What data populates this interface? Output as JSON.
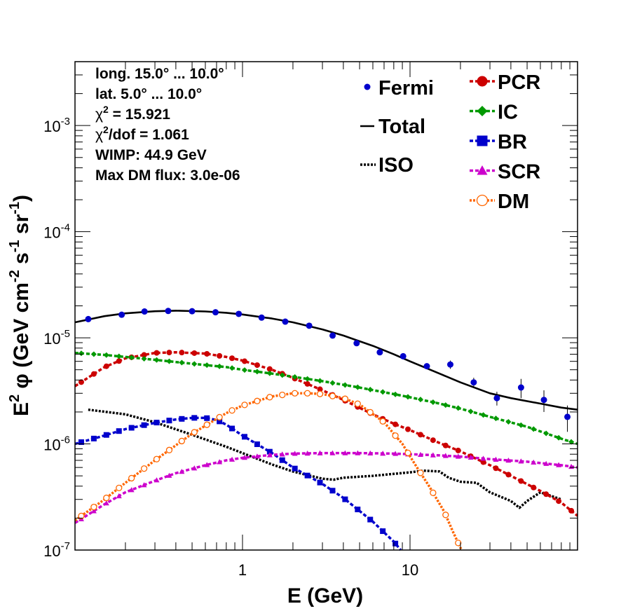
{
  "annotations": [
    {
      "text": "long. 15.0° ... 10.0°"
    },
    {
      "prefix": "χ",
      "sup": "",
      "text": "lat. 5.0° ... 10.0°"
    },
    {
      "prefix": "χ",
      "sup": "2",
      "text": " = 15.921"
    },
    {
      "prefix": "χ",
      "sup": "2",
      "text": "/dof = 1.061"
    },
    {
      "text": "WIMP: 44.9 GeV"
    },
    {
      "text": "Max DM flux: 3.0e-06"
    }
  ],
  "chart_data": {
    "type": "line",
    "xlabel": "E (GeV)",
    "ylabel": {
      "a": "E",
      "a_sup": "2",
      "b": " φ (GeV cm",
      "b_sup": "-2",
      "c": " s",
      "c_sup": "-1",
      "d": " sr",
      "d_sup": "-1",
      "e": ")"
    },
    "x_scale": "log",
    "y_scale": "log",
    "xlim": [
      0.1,
      100
    ],
    "ylim": [
      1e-07,
      0.004
    ],
    "x_ticks": [
      {
        "value": 1,
        "label": "1"
      },
      {
        "value": 10,
        "label": "10"
      }
    ],
    "y_ticks": [
      {
        "value": 1e-07,
        "base": "10",
        "exp": "-7"
      },
      {
        "value": 1e-06,
        "base": "10",
        "exp": "-6"
      },
      {
        "value": 1e-05,
        "base": "10",
        "exp": "-5"
      },
      {
        "value": 0.0001,
        "base": "10",
        "exp": "-4"
      },
      {
        "value": 0.001,
        "base": "10",
        "exp": "-3"
      }
    ],
    "legend_position": "top-right",
    "fermi": {
      "name": "Fermi",
      "color": "#0000cc",
      "points": [
        {
          "x": 0.12,
          "y": 1.5e-05,
          "err": 0
        },
        {
          "x": 0.19,
          "y": 1.65e-05,
          "err": 0
        },
        {
          "x": 0.26,
          "y": 1.77e-05,
          "err": 0
        },
        {
          "x": 0.36,
          "y": 1.79e-05,
          "err": 0
        },
        {
          "x": 0.5,
          "y": 1.78e-05,
          "err": 0
        },
        {
          "x": 0.69,
          "y": 1.74e-05,
          "err": 0
        },
        {
          "x": 0.95,
          "y": 1.68e-05,
          "err": 0
        },
        {
          "x": 1.3,
          "y": 1.55e-05,
          "err": 0
        },
        {
          "x": 1.8,
          "y": 1.42e-05,
          "err": 0
        },
        {
          "x": 2.5,
          "y": 1.3e-05,
          "err": 0
        },
        {
          "x": 3.45,
          "y": 1.05e-05,
          "err": 0
        },
        {
          "x": 4.8,
          "y": 8.9e-06,
          "err": 0
        },
        {
          "x": 6.6,
          "y": 7.3e-06,
          "err": 0
        },
        {
          "x": 9.1,
          "y": 6.7e-06,
          "err": 0
        },
        {
          "x": 12.6,
          "y": 5.4e-06,
          "err": 3.5e-07
        },
        {
          "x": 17.4,
          "y": 5.6e-06,
          "err": 5e-07
        },
        {
          "x": 24,
          "y": 3.8e-06,
          "err": 4e-07
        },
        {
          "x": 33,
          "y": 2.7e-06,
          "err": 4e-07
        },
        {
          "x": 46,
          "y": 3.4e-06,
          "err": 7e-07
        },
        {
          "x": 63,
          "y": 2.6e-06,
          "err": 6e-07
        },
        {
          "x": 87,
          "y": 1.8e-06,
          "err": 5e-07
        }
      ]
    },
    "series": [
      {
        "name": "Total",
        "color": "#000000",
        "marker": "none",
        "dash": "solid",
        "x": [
          0.1,
          0.15,
          0.2,
          0.3,
          0.4,
          0.6,
          0.8,
          1.0,
          1.5,
          2,
          3,
          4,
          6,
          8,
          10,
          15,
          20,
          30,
          40,
          60,
          80,
          100
        ],
        "y": [
          1.4e-05,
          1.6e-05,
          1.7e-05,
          1.78e-05,
          1.8e-05,
          1.77e-05,
          1.72e-05,
          1.66e-05,
          1.52e-05,
          1.4e-05,
          1.2e-05,
          1.05e-05,
          8.4e-06,
          7e-06,
          6e-06,
          4.6e-06,
          3.8e-06,
          3e-06,
          2.7e-06,
          2.4e-06,
          2.2e-06,
          2.1e-06
        ]
      },
      {
        "name": "ISO",
        "color": "#000000",
        "marker": "none",
        "dash": "dot",
        "x": [
          0.12,
          0.2,
          0.3,
          0.5,
          0.8,
          1,
          1.5,
          2,
          3,
          3.5,
          4,
          6,
          10,
          12,
          15,
          17,
          20,
          25,
          30,
          40,
          45,
          50,
          60,
          80
        ],
        "y": [
          2.1e-06,
          1.9e-06,
          1.6e-06,
          1.22e-06,
          9.4e-07,
          8.2e-07,
          6.4e-07,
          5.5e-07,
          4.7e-07,
          4.6e-07,
          4.8e-07,
          5e-07,
          5.4e-07,
          5.6e-07,
          5.5e-07,
          4.8e-07,
          4.4e-07,
          4.3e-07,
          3.5e-07,
          2.9e-07,
          2.5e-07,
          2.9e-07,
          3.5e-07,
          3e-07
        ]
      },
      {
        "name": "PCR",
        "color": "#cc0000",
        "marker": "circle",
        "dash": "dash",
        "x": [
          0.1,
          0.15,
          0.2,
          0.3,
          0.4,
          0.6,
          0.8,
          1.0,
          1.5,
          2,
          3,
          4,
          6,
          8,
          10,
          15,
          20,
          30,
          40,
          60,
          80,
          100
        ],
        "y": [
          3.5e-06,
          5.3e-06,
          6.4e-06,
          7.2e-06,
          7.3e-06,
          7.1e-06,
          6.6e-06,
          6.1e-06,
          5e-06,
          4.2e-06,
          3.2e-06,
          2.6e-06,
          1.9e-06,
          1.55e-06,
          1.35e-06,
          1.02e-06,
          8.5e-07,
          6.3e-07,
          5e-07,
          3.6e-07,
          2.8e-07,
          2.1e-07
        ]
      },
      {
        "name": "IC",
        "color": "#009900",
        "marker": "diamond",
        "dash": "dash",
        "x": [
          0.1,
          0.15,
          0.2,
          0.3,
          0.5,
          0.8,
          1,
          1.5,
          2,
          3,
          5,
          8,
          10,
          15,
          20,
          30,
          50,
          80,
          100
        ],
        "y": [
          7.2e-06,
          6.9e-06,
          6.6e-06,
          6.2e-06,
          5.7e-06,
          5.3e-06,
          5e-06,
          4.6e-06,
          4.3e-06,
          3.9e-06,
          3.4e-06,
          2.95e-06,
          2.75e-06,
          2.4e-06,
          2.15e-06,
          1.8e-06,
          1.45e-06,
          1.12e-06,
          1e-06
        ]
      },
      {
        "name": "BR",
        "color": "#0000cc",
        "marker": "square",
        "dash": "dash",
        "x": [
          0.1,
          0.15,
          0.2,
          0.3,
          0.4,
          0.5,
          0.6,
          0.7,
          0.8,
          1.0,
          1.5,
          2,
          3,
          4,
          6,
          8,
          8.8
        ],
        "y": [
          1e-06,
          1.2e-06,
          1.38e-06,
          1.58e-06,
          1.7e-06,
          1.76e-06,
          1.76e-06,
          1.68e-06,
          1.52e-06,
          1.2e-06,
          8.2e-07,
          6e-07,
          4.2e-07,
          3.1e-07,
          1.85e-07,
          1.2e-07,
          1e-07
        ]
      },
      {
        "name": "SCR",
        "color": "#cc00cc",
        "marker": "triangle",
        "dash": "dash",
        "x": [
          0.1,
          0.15,
          0.2,
          0.3,
          0.4,
          0.6,
          0.8,
          1,
          1.5,
          2,
          3,
          5,
          8,
          10,
          15,
          20,
          30,
          50,
          80,
          100
        ],
        "y": [
          1.8e-07,
          2.7e-07,
          3.5e-07,
          4.5e-07,
          5.3e-07,
          6.3e-07,
          7e-07,
          7.4e-07,
          7.9e-07,
          8.1e-07,
          8.2e-07,
          8.2e-07,
          8.1e-07,
          8e-07,
          7.8e-07,
          7.6e-07,
          7.2e-07,
          6.8e-07,
          6.3e-07,
          6e-07
        ]
      },
      {
        "name": "DM",
        "color": "#ff6600",
        "marker": "open-circle",
        "dash": "dot",
        "x": [
          0.1,
          0.15,
          0.2,
          0.3,
          0.5,
          0.8,
          1,
          1.5,
          2,
          2.5,
          3,
          4,
          5,
          7,
          9,
          11,
          13,
          16,
          18,
          20,
          20.5
        ],
        "y": [
          1.9e-07,
          3e-07,
          4.3e-07,
          7e-07,
          1.25e-06,
          1.95e-06,
          2.3e-06,
          2.8e-06,
          3e-06,
          3e-06,
          2.95e-06,
          2.7e-06,
          2.35e-06,
          1.6e-06,
          1e-06,
          6e-07,
          4e-07,
          2.3e-07,
          1.5e-07,
          1.05e-07,
          1e-07
        ]
      }
    ]
  }
}
